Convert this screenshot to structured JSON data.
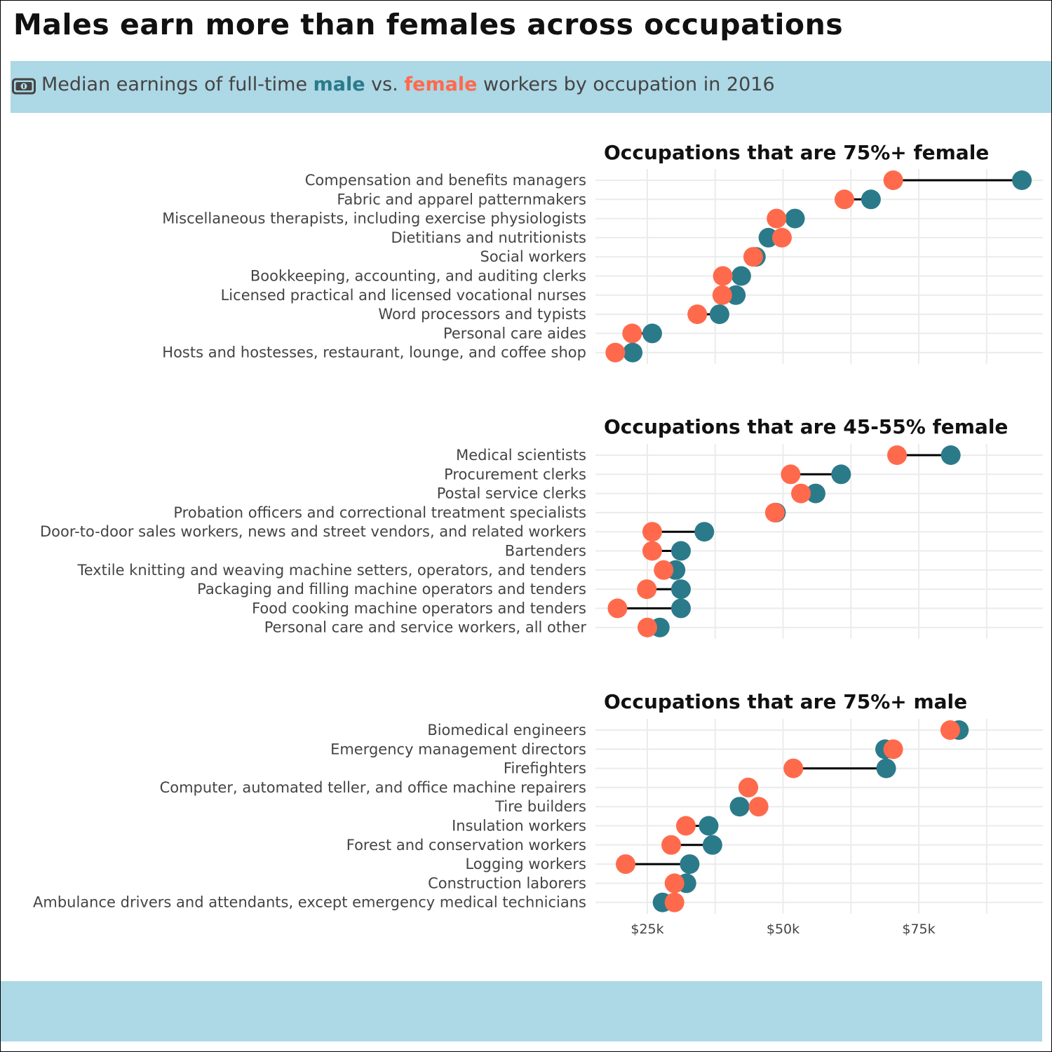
{
  "title": "Males earn more than females across occupations",
  "subtitle": {
    "before": "Median earnings of full-time",
    "male_word": "male",
    "middle": "vs.",
    "female_word": "female",
    "after": "workers by occupation in 2016",
    "icon": "money-icon"
  },
  "colors": {
    "male": "#2b7a8a",
    "female": "#ff6a4c",
    "band": "#add8e6",
    "grid": "#ebebeb",
    "connector": "#000000"
  },
  "chart_data": {
    "type": "dumbbell",
    "series": [
      {
        "name": "male",
        "color": "#2b7a8a"
      },
      {
        "name": "female",
        "color": "#ff6a4c"
      }
    ],
    "x_ticks": [
      {
        "value": 25000,
        "label": "$25k"
      },
      {
        "value": 50000,
        "label": "$50k"
      },
      {
        "value": 75000,
        "label": "$75k"
      }
    ],
    "xlim": [
      13000,
      96000
    ],
    "panels": [
      {
        "title": "Occupations that are 75%+ female",
        "rows": [
          {
            "category": "Compensation and benefits managers",
            "male": 94000,
            "female": 70300
          },
          {
            "category": "Fabric and apparel patternmakers",
            "male": 66200,
            "female": 61300
          },
          {
            "category": "Miscellaneous therapists, including exercise physiologists",
            "male": 52200,
            "female": 48800
          },
          {
            "category": "Dietitians and nutritionists",
            "male": 47300,
            "female": 49800
          },
          {
            "category": "Social workers",
            "male": 45000,
            "female": 44500
          },
          {
            "category": "Bookkeeping, accounting, and auditing clerks",
            "male": 42300,
            "female": 38900
          },
          {
            "category": "Licensed practical and licensed vocational nurses",
            "male": 41300,
            "female": 38800
          },
          {
            "category": "Word processors and typists",
            "male": 38300,
            "female": 34200
          },
          {
            "category": "Personal care aides",
            "male": 25900,
            "female": 22200
          },
          {
            "category": "Hosts and hostesses, restaurant, lounge, and coffee shop",
            "male": 22300,
            "female": 19100
          }
        ]
      },
      {
        "title": "Occupations that are 45-55% female",
        "rows": [
          {
            "category": "Medical scientists",
            "male": 80900,
            "female": 71000
          },
          {
            "category": "Procurement clerks",
            "male": 60700,
            "female": 51400
          },
          {
            "category": "Postal service clerks",
            "male": 56000,
            "female": 53300
          },
          {
            "category": "Probation officers and correctional treatment specialists",
            "male": 48700,
            "female": 48500
          },
          {
            "category": "Door-to-door sales workers, news and street vendors, and related workers",
            "male": 35500,
            "female": 25900
          },
          {
            "category": "Bartenders",
            "male": 31200,
            "female": 25900
          },
          {
            "category": "Textile knitting and weaving machine setters, operators, and tenders",
            "male": 30200,
            "female": 28000
          },
          {
            "category": "Packaging and filling machine operators and tenders",
            "male": 31200,
            "female": 24900
          },
          {
            "category": "Food cooking machine operators and tenders",
            "male": 31200,
            "female": 19500
          },
          {
            "category": "Personal care and service workers, all other",
            "male": 27300,
            "female": 25000
          }
        ]
      },
      {
        "title": "Occupations that are 75%+ male",
        "rows": [
          {
            "category": "Biomedical engineers",
            "male": 82400,
            "female": 80800
          },
          {
            "category": "Emergency management directors",
            "male": 68800,
            "female": 70300
          },
          {
            "category": "Firefighters",
            "male": 69000,
            "female": 51900
          },
          {
            "category": "Computer, automated teller, and office machine repairers",
            "male": 43600,
            "female": 43600
          },
          {
            "category": "Tire builders",
            "male": 42000,
            "female": 45500
          },
          {
            "category": "Insulation workers",
            "male": 36300,
            "female": 32100
          },
          {
            "category": "Forest and conservation workers",
            "male": 37000,
            "female": 29400
          },
          {
            "category": "Logging workers",
            "male": 32800,
            "female": 21000
          },
          {
            "category": "Construction laborers",
            "male": 32200,
            "female": 30000
          },
          {
            "category": "Ambulance drivers and attendants, except emergency medical technicians",
            "male": 27800,
            "female": 30000
          }
        ]
      }
    ]
  }
}
